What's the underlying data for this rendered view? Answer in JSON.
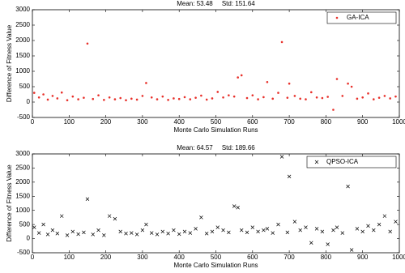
{
  "chart_data": [
    {
      "type": "scatter",
      "title": "Mean: 53.48     Std: 151.64",
      "xlabel": "Monte Carlo Simulation Runs",
      "ylabel": "Difference of Fitness Value",
      "x": [
        5,
        18,
        30,
        42,
        55,
        68,
        80,
        95,
        110,
        125,
        140,
        150,
        165,
        180,
        195,
        210,
        225,
        240,
        255,
        270,
        285,
        300,
        310,
        325,
        340,
        355,
        370,
        385,
        400,
        415,
        430,
        445,
        460,
        475,
        490,
        505,
        520,
        535,
        550,
        560,
        570,
        585,
        600,
        615,
        630,
        640,
        655,
        670,
        680,
        695,
        700,
        715,
        730,
        745,
        760,
        775,
        790,
        805,
        820,
        830,
        845,
        860,
        870,
        885,
        900,
        915,
        930,
        945,
        960,
        975,
        990
      ],
      "series": [
        {
          "name": "GA-ICA",
          "color": "#e8302a",
          "marker": "dot",
          "values": [
            300,
            150,
            250,
            80,
            200,
            120,
            310,
            60,
            180,
            90,
            140,
            1900,
            100,
            220,
            70,
            150,
            90,
            130,
            60,
            110,
            80,
            200,
            620,
            150,
            90,
            180,
            70,
            120,
            100,
            160,
            90,
            140,
            210,
            80,
            120,
            330,
            150,
            220,
            180,
            800,
            870,
            130,
            220,
            90,
            160,
            650,
            110,
            300,
            1950,
            140,
            600,
            200,
            110,
            90,
            320,
            150,
            130,
            170,
            -250,
            750,
            200,
            600,
            500,
            110,
            150,
            280,
            90,
            140,
            200,
            120,
            180
          ]
        }
      ],
      "xlim": [
        0,
        1000
      ],
      "xticks": [
        0,
        100,
        200,
        300,
        400,
        500,
        600,
        700,
        800,
        900,
        1000
      ],
      "ylim": [
        -500,
        3000
      ],
      "yticks": [
        -500,
        0,
        500,
        1000,
        1500,
        2000,
        2500,
        3000
      ],
      "legend": "upper right"
    },
    {
      "type": "scatter",
      "title": "Mean: 64.57     Std: 189.66",
      "xlabel": "Monte Carlo Simulation Runs",
      "ylabel": "Difference of Fitness Value",
      "x": [
        5,
        18,
        30,
        42,
        55,
        68,
        80,
        95,
        110,
        125,
        140,
        150,
        165,
        180,
        195,
        210,
        225,
        240,
        255,
        270,
        285,
        300,
        310,
        325,
        340,
        355,
        370,
        385,
        400,
        415,
        430,
        445,
        460,
        475,
        490,
        505,
        520,
        535,
        550,
        560,
        570,
        585,
        600,
        615,
        630,
        640,
        655,
        670,
        680,
        695,
        700,
        715,
        730,
        745,
        760,
        775,
        790,
        805,
        820,
        830,
        845,
        860,
        870,
        885,
        900,
        915,
        930,
        945,
        960,
        975,
        990
      ],
      "series": [
        {
          "name": "QPSO-ICA",
          "color": "#000000",
          "marker": "x",
          "values": [
            400,
            200,
            500,
            150,
            300,
            180,
            800,
            120,
            250,
            160,
            220,
            1400,
            150,
            300,
            120,
            800,
            700,
            250,
            180,
            200,
            150,
            300,
            500,
            200,
            150,
            250,
            180,
            300,
            160,
            250,
            200,
            350,
            750,
            180,
            250,
            400,
            300,
            220,
            1150,
            1100,
            300,
            220,
            400,
            250,
            300,
            350,
            200,
            500,
            2900,
            220,
            2200,
            600,
            300,
            400,
            -150,
            350,
            250,
            -200,
            300,
            400,
            200,
            1850,
            -400,
            350,
            250,
            450,
            300,
            500,
            800,
            250,
            600
          ]
        }
      ],
      "xlim": [
        0,
        1000
      ],
      "xticks": [
        0,
        100,
        200,
        300,
        400,
        500,
        600,
        700,
        800,
        900,
        1000
      ],
      "ylim": [
        -500,
        3000
      ],
      "yticks": [
        -500,
        0,
        500,
        1000,
        1500,
        2000,
        2500,
        3000
      ],
      "legend": "upper right"
    }
  ]
}
